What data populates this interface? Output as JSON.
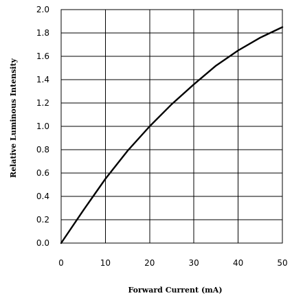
{
  "chart_data": {
    "type": "line",
    "title": "",
    "xlabel": "Forward Current (mA)",
    "ylabel": "Relative Luminous Intensity",
    "xlim": [
      0,
      50
    ],
    "ylim": [
      0,
      2.0
    ],
    "x_ticks": [
      "0",
      "10",
      "20",
      "30",
      "40",
      "50"
    ],
    "y_ticks": [
      "0.0",
      "0.2",
      "0.4",
      "0.6",
      "0.8",
      "1.0",
      "1.2",
      "1.4",
      "1.6",
      "1.8",
      "2.0"
    ],
    "grid": true,
    "series": [
      {
        "x": [
          0,
          5,
          10,
          15,
          20,
          25,
          30,
          35,
          40,
          45,
          50
        ],
        "y": [
          0.0,
          0.28,
          0.55,
          0.79,
          1.0,
          1.19,
          1.36,
          1.52,
          1.65,
          1.76,
          1.85
        ]
      }
    ]
  }
}
